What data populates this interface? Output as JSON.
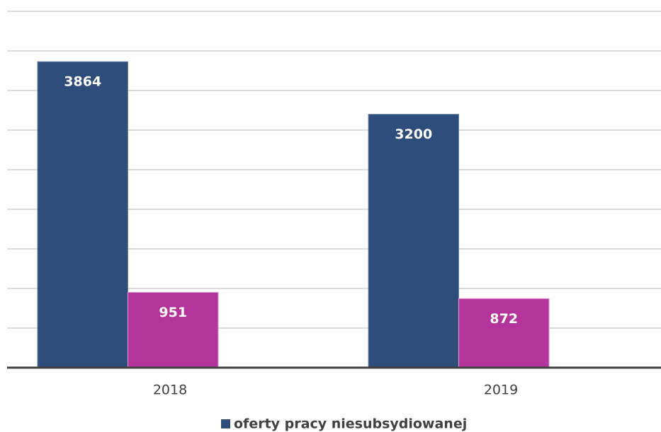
{
  "chart_data": {
    "type": "bar",
    "categories": [
      "2018",
      "2019"
    ],
    "series": [
      {
        "name": "oferty pracy niesubsydiowanej",
        "color": "#2e4d7b",
        "values": [
          3864,
          3200
        ]
      },
      {
        "name": null,
        "color": "#b5349b",
        "values": [
          951,
          872
        ]
      }
    ],
    "ylim": [
      0,
      4500
    ],
    "yticks": [
      0,
      500,
      1000,
      1500,
      2000,
      2500,
      3000,
      3500,
      4000,
      4500
    ],
    "grid": true,
    "legend": "bottom"
  }
}
